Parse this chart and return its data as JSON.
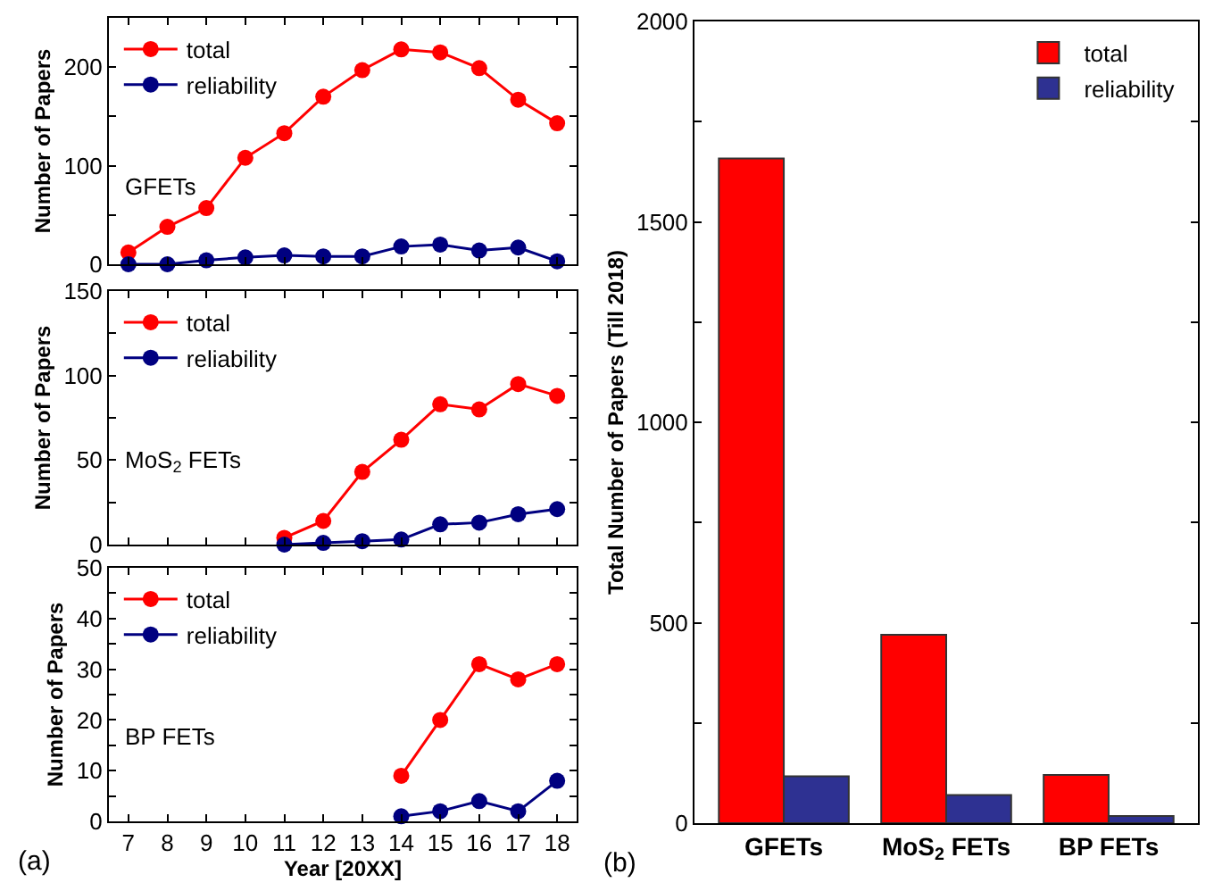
{
  "chart_data": [
    {
      "type": "line",
      "ylabel": "Number of Papers",
      "x": [
        7,
        8,
        9,
        10,
        11,
        12,
        13,
        14,
        15,
        16,
        17,
        18
      ],
      "series": [
        {
          "name": "total",
          "color": "#ff0000",
          "values": [
            12,
            38,
            57,
            108,
            133,
            170,
            197,
            218,
            215,
            199,
            167,
            143
          ]
        },
        {
          "name": "reliability",
          "color": "#000080",
          "values": [
            0,
            0,
            4,
            7,
            9,
            8,
            8,
            18,
            20,
            14,
            17,
            3
          ]
        }
      ],
      "xlim": [
        6.5,
        18.5
      ],
      "xticks": [
        7,
        8,
        9,
        10,
        11,
        12,
        13,
        14,
        15,
        16,
        17,
        18
      ],
      "ylim": [
        0,
        250
      ],
      "yticks": [
        0,
        {
          "value": 50,
          "label": null
        },
        100,
        {
          "value": 150,
          "label": null
        },
        200
      ],
      "tick_labels": "y",
      "annotations": [
        "GFETs"
      ],
      "legend": "top left",
      "marker": "circle",
      "line_style": "solid"
    },
    {
      "type": "line",
      "ylabel": "Number of Papers",
      "x": [
        11,
        12,
        13,
        14,
        15,
        16,
        17,
        18
      ],
      "series": [
        {
          "name": "total",
          "color": "#ff0000",
          "values": [
            4,
            14,
            43,
            62,
            83,
            80,
            95,
            88
          ]
        },
        {
          "name": "reliability",
          "color": "#000080",
          "values": [
            0,
            1,
            2,
            3,
            12,
            13,
            18,
            21
          ]
        }
      ],
      "xlim": [
        6.5,
        18.5
      ],
      "xticks": [
        7,
        8,
        9,
        10,
        11,
        12,
        13,
        14,
        15,
        16,
        17,
        18
      ],
      "ylim": [
        0,
        150
      ],
      "yticks": [
        0,
        {
          "value": 25,
          "label": null
        },
        50,
        {
          "value": 75,
          "label": null
        },
        100,
        {
          "value": 125,
          "label": null
        },
        150
      ],
      "tick_labels": "y",
      "annotations": [
        "MoS$_{2}$ FETs"
      ],
      "legend": "top left",
      "marker": "circle",
      "line_style": "solid"
    },
    {
      "type": "line",
      "ylabel": "Number of Papers",
      "xlabel": "Year [20XX]",
      "x": [
        14,
        15,
        16,
        17,
        18
      ],
      "series": [
        {
          "name": "total",
          "color": "#ff0000",
          "values": [
            9,
            20,
            31,
            28,
            31
          ]
        },
        {
          "name": "reliability",
          "color": "#000080",
          "values": [
            1,
            2,
            4,
            2,
            8
          ]
        }
      ],
      "xlim": [
        6.5,
        18.5
      ],
      "xticks": [
        7,
        8,
        9,
        10,
        11,
        12,
        13,
        14,
        15,
        16,
        17,
        18
      ],
      "ylim": [
        0,
        50
      ],
      "yticks": [
        0,
        {
          "value": 5,
          "label": null
        },
        10,
        {
          "value": 15,
          "label": null
        },
        20,
        {
          "value": 25,
          "label": null
        },
        30,
        {
          "value": 35,
          "label": null
        },
        40,
        {
          "value": 45,
          "label": null
        },
        50
      ],
      "annotations": [
        "BP FETs",
        "(a)"
      ],
      "legend": "top left",
      "marker": "circle",
      "line_style": "solid"
    },
    {
      "type": "bar",
      "ylabel": "Total Number of Papers (Till 2018)",
      "categories": [
        "GFETs",
        "MoS$_{2}$ FETs",
        "BP FETs"
      ],
      "series": [
        {
          "name": "total",
          "color": "#ff0000",
          "values": [
            1658,
            470,
            120
          ]
        },
        {
          "name": "reliability",
          "color": "#2e3192",
          "values": [
            117,
            70,
            18
          ]
        }
      ],
      "ylim": [
        0,
        2000
      ],
      "yticks": [
        0,
        {
          "value": 250,
          "label": null
        },
        500,
        {
          "value": 750,
          "label": null
        },
        1000,
        {
          "value": 1250,
          "label": null
        },
        1500,
        {
          "value": 1750,
          "label": null
        },
        2000
      ],
      "annotations": [
        "(b)"
      ],
      "legend": "top right"
    }
  ]
}
